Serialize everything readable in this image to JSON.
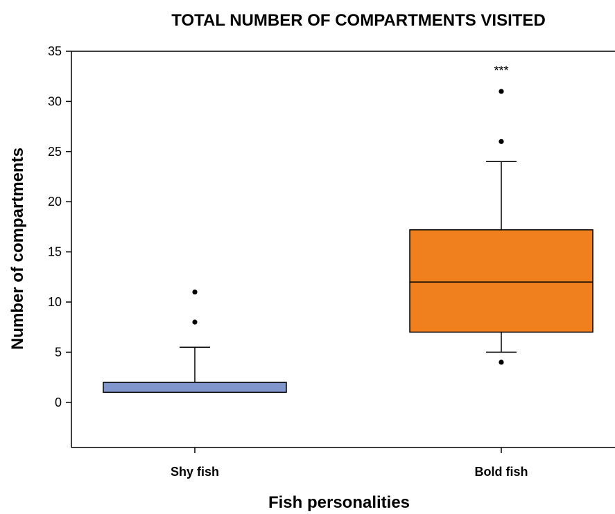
{
  "chart_data": {
    "type": "box",
    "title": "TOTAL NUMBER OF COMPARTMENTS VISITED",
    "xlabel": "Fish personalities",
    "ylabel": "Number of compartments",
    "ylim": [
      -4.5,
      35
    ],
    "yticks": [
      0,
      5,
      10,
      15,
      20,
      25,
      30,
      35
    ],
    "grid": false,
    "categories": [
      "Shy fish",
      "Bold fish"
    ],
    "boxes": [
      {
        "category": "Shy fish",
        "color": "#8096CC",
        "q1": 1,
        "median": 2,
        "q3": 2,
        "whisker_low": 1,
        "whisker_high": 5.5,
        "outliers": [
          8,
          11
        ],
        "annotation": ""
      },
      {
        "category": "Bold fish",
        "color": "#F0801E",
        "q1": 7,
        "median": 12,
        "q3": 17.2,
        "whisker_low": 5,
        "whisker_high": 24,
        "outliers": [
          4,
          26,
          31
        ],
        "annotation": "***"
      }
    ]
  }
}
